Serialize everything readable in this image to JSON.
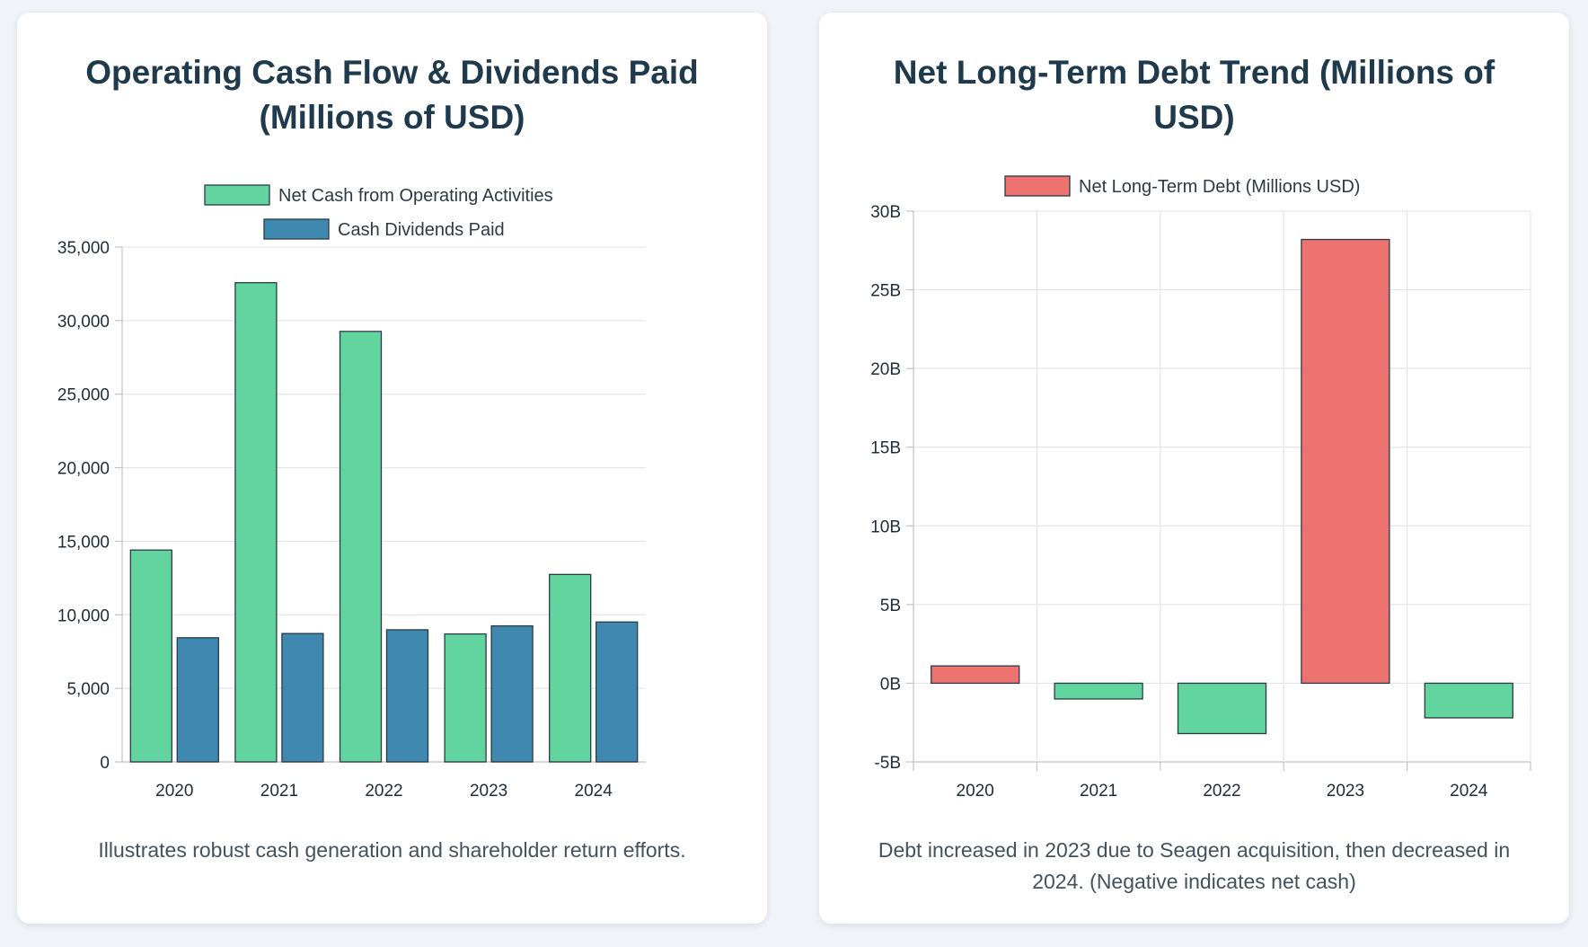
{
  "colors": {
    "operating": "#62d4a0",
    "dividends": "#3f88b0",
    "debt_positive": "#ec7370",
    "debt_negative": "#62d4a0",
    "bar_stroke": "#2a3b44",
    "grid": "#e3e6e9"
  },
  "chart_data": [
    {
      "type": "bar",
      "title": "Operating Cash Flow & Dividends Paid (Millions of USD)",
      "title_lines": [
        "Operating Cash Flow & Dividends Paid",
        "(Millions of USD)"
      ],
      "categories": [
        "2020",
        "2021",
        "2022",
        "2023",
        "2024"
      ],
      "series": [
        {
          "name": "Net Cash from Operating Activities",
          "values": [
            14403,
            32580,
            29267,
            8700,
            12744
          ]
        },
        {
          "name": "Cash Dividends Paid",
          "values": [
            8440,
            8729,
            8983,
            9247,
            9512
          ]
        }
      ],
      "ylim": [
        0,
        35000
      ],
      "yticks": [
        0,
        5000,
        10000,
        15000,
        20000,
        25000,
        30000,
        35000
      ],
      "ytick_labels": [
        "0",
        "5,000",
        "10,000",
        "15,000",
        "20,000",
        "25,000",
        "30,000",
        "35,000"
      ],
      "grid": "horizontal",
      "legend": "top-center",
      "caption": "Illustrates robust cash generation and shareholder return efforts."
    },
    {
      "type": "bar",
      "title": "Net Long-Term Debt Trend (Millions of USD)",
      "title_lines": [
        "Net Long-Term Debt Trend (Millions of",
        "USD)"
      ],
      "categories": [
        "2020",
        "2021",
        "2022",
        "2023",
        "2024"
      ],
      "series": [
        {
          "name": "Net Long-Term Debt (Millions USD)",
          "values": [
            1.1,
            -1.0,
            -3.2,
            28.2,
            -2.2
          ]
        }
      ],
      "ylim": [
        -5,
        30
      ],
      "yticks": [
        -5,
        0,
        5,
        10,
        15,
        20,
        25,
        30
      ],
      "ytick_labels": [
        "-5B",
        "0B",
        "5B",
        "10B",
        "15B",
        "20B",
        "25B",
        "30B"
      ],
      "grid": "both",
      "legend": "top-center",
      "caption": "Debt increased in 2023 due to Seagen acquisition, then decreased in 2024. (Negative indicates net cash)"
    }
  ]
}
